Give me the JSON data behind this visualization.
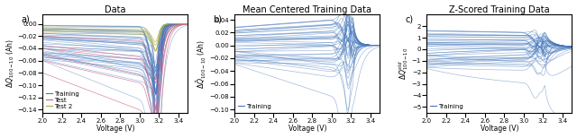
{
  "title_a": "Data",
  "title_b": "Mean Centered Training Data",
  "title_c": "Z-Scored Training Data",
  "xlabel": "Voltage (V)",
  "voltage_min": 2.0,
  "voltage_max": 3.5,
  "n_voltage": 500,
  "n_training": 40,
  "n_test": 6,
  "n_test2": 5,
  "color_training": "#4477bb",
  "color_test": "#cc6688",
  "color_test2": "#aaaa44",
  "alpha_train": 0.55,
  "alpha_test": 0.85,
  "alpha_test2": 0.85,
  "figsize": [
    6.4,
    1.54
  ],
  "dpi": 100,
  "label_training": "Training",
  "label_test": "Test",
  "label_test2": "Test 2",
  "panel_a": "a)",
  "panel_b": "b)",
  "panel_c": "c)",
  "ylim_a": [
    -0.145,
    0.015
  ],
  "ylim_b": [
    -0.105,
    0.048
  ],
  "ylim_c": [
    -5.5,
    3.0
  ],
  "yticks_a": [
    0.0,
    -0.02,
    -0.04,
    -0.06,
    -0.08,
    -0.1,
    -0.12,
    -0.14
  ],
  "yticks_b": [
    0.04,
    0.02,
    0.0,
    -0.02,
    -0.04,
    -0.06,
    -0.08,
    -0.1
  ],
  "yticks_c": [
    2,
    1,
    0,
    -1,
    -2,
    -3,
    -4,
    -5
  ],
  "xticks": [
    2.0,
    2.2,
    2.4,
    2.6,
    2.8,
    3.0,
    3.2,
    3.4
  ],
  "legend_fontsize": 5.0,
  "tick_labelsize": 5,
  "title_fontsize": 7,
  "axis_labelsize": 5.5
}
